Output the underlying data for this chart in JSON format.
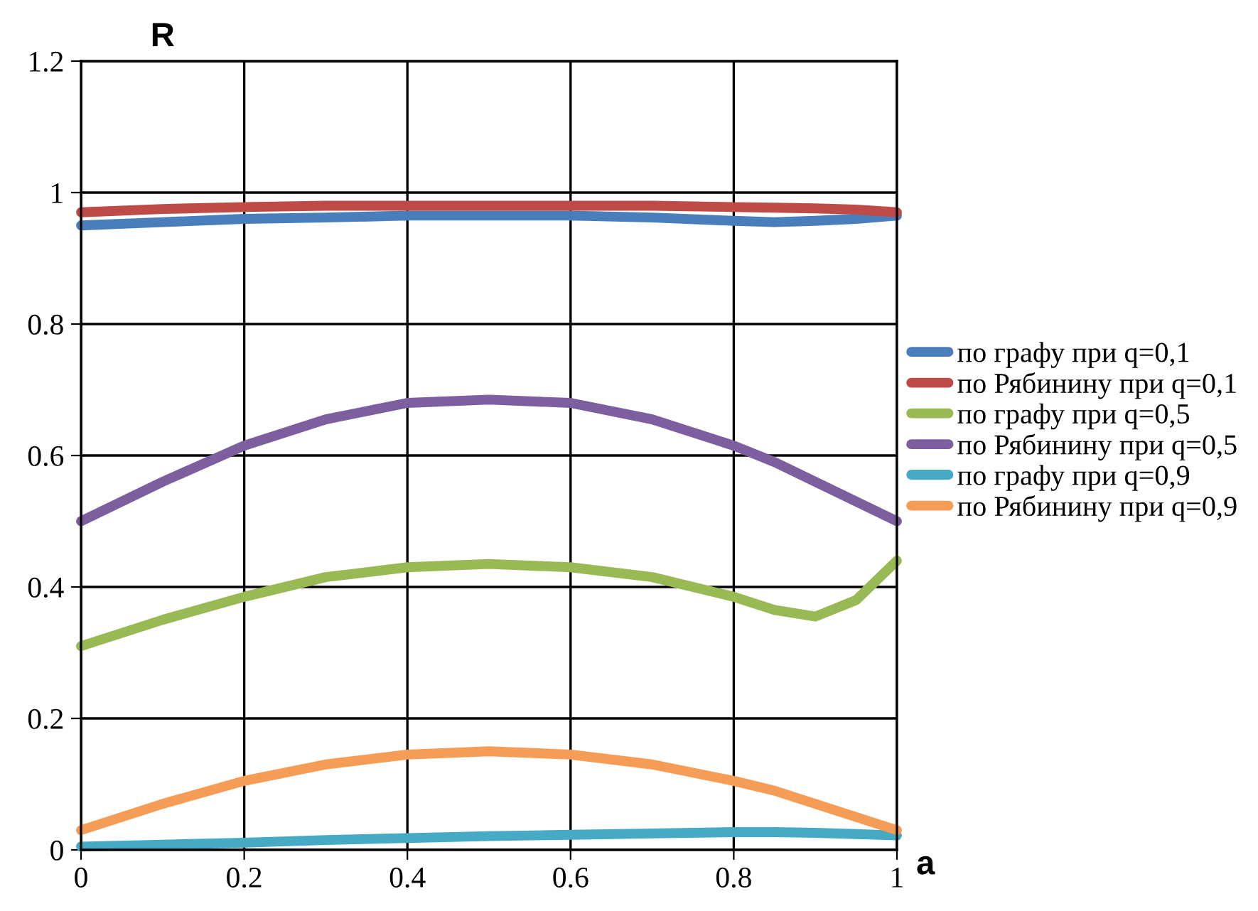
{
  "chart_data": {
    "type": "line",
    "xlabel": "a",
    "ylabel": "R",
    "x": [
      0,
      0.1,
      0.2,
      0.3,
      0.4,
      0.5,
      0.6,
      0.7,
      0.8,
      0.85,
      0.9,
      0.95,
      1
    ],
    "series": [
      {
        "name": "по графу при q=0,1",
        "color": "#4a7ebb",
        "values": [
          0.95,
          0.955,
          0.96,
          0.962,
          0.965,
          0.965,
          0.965,
          0.962,
          0.957,
          0.955,
          0.957,
          0.96,
          0.965
        ]
      },
      {
        "name": "по Рябинину при q=0,1",
        "color": "#be4b48",
        "values": [
          0.97,
          0.975,
          0.978,
          0.98,
          0.98,
          0.98,
          0.98,
          0.98,
          0.978,
          0.977,
          0.976,
          0.974,
          0.97
        ]
      },
      {
        "name": "по графу при q=0,5",
        "color": "#98b954",
        "values": [
          0.31,
          0.35,
          0.385,
          0.415,
          0.43,
          0.435,
          0.43,
          0.415,
          0.385,
          0.365,
          0.355,
          0.38,
          0.44
        ]
      },
      {
        "name": "по Рябинину при q=0,5",
        "color": "#7d5fa0",
        "values": [
          0.5,
          0.56,
          0.615,
          0.655,
          0.68,
          0.685,
          0.68,
          0.655,
          0.615,
          0.59,
          0.56,
          0.53,
          0.5
        ]
      },
      {
        "name": "по графу при q=0,9",
        "color": "#46aac5",
        "values": [
          0.005,
          0.008,
          0.011,
          0.015,
          0.018,
          0.021,
          0.023,
          0.025,
          0.027,
          0.027,
          0.026,
          0.024,
          0.022
        ]
      },
      {
        "name": "по Рябинину при q=0,9",
        "color": "#f59d56",
        "values": [
          0.03,
          0.07,
          0.105,
          0.13,
          0.145,
          0.15,
          0.145,
          0.13,
          0.105,
          0.09,
          0.07,
          0.05,
          0.03
        ]
      }
    ],
    "xlim": [
      0,
      1
    ],
    "xticks": [
      0,
      0.2,
      0.4,
      0.6,
      0.8,
      1
    ],
    "ylim": [
      0,
      1.2
    ],
    "yticks": [
      0,
      0.2,
      0.4,
      0.6,
      0.8,
      1,
      1.2
    ],
    "grid": true,
    "legend": "right",
    "marker": "none",
    "line_style": "solid"
  }
}
